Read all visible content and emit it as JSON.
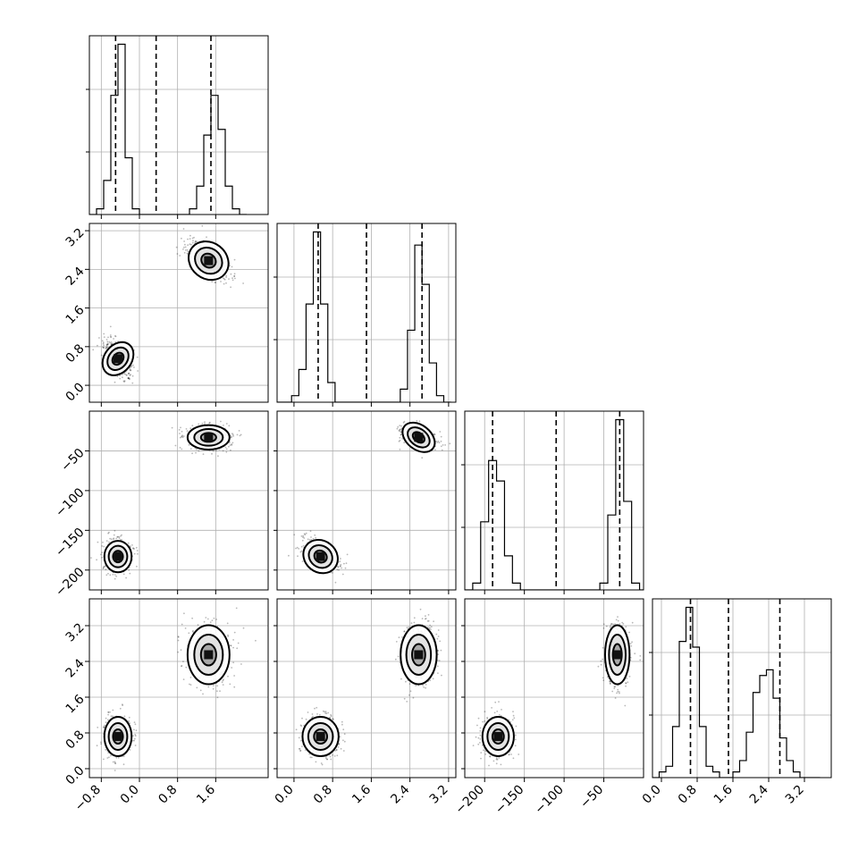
{
  "chart_data": {
    "type": "corner",
    "parameters": 4,
    "grid": true,
    "axis_ranges": [
      [
        -1.05,
        2.7
      ],
      [
        -0.35,
        3.35
      ],
      [
        -225,
        0
      ],
      [
        -0.2,
        3.8
      ]
    ],
    "ticks": [
      [
        -0.8,
        0.0,
        0.8,
        1.6
      ],
      [
        0.0,
        0.8,
        1.6,
        2.4,
        3.2
      ],
      [
        -200,
        -150,
        -100,
        -50
      ],
      [
        0.0,
        0.8,
        1.6,
        2.4,
        3.2
      ]
    ],
    "tick_labels": [
      [
        "−0.8",
        "0.0",
        "0.8",
        "1.6"
      ],
      [
        "0.0",
        "0.8",
        "1.6",
        "2.4",
        "3.2"
      ],
      [
        "−200",
        "−150",
        "−100",
        "−50"
      ],
      [
        "0.0",
        "0.8",
        "1.6",
        "2.4",
        "3.2"
      ]
    ],
    "quantiles": [
      [
        -0.5,
        0.35,
        1.5
      ],
      [
        0.5,
        1.5,
        2.65
      ],
      [
        -190,
        -110,
        -30
      ],
      [
        0.65,
        1.5,
        2.65
      ]
    ],
    "modes": [
      [
        {
          "mean": -0.45,
          "sd": 0.13,
          "weight": 1.0
        },
        {
          "mean": 1.45,
          "sd": 0.2,
          "weight": 0.8
        }
      ],
      [
        {
          "mean": 0.55,
          "sd": 0.17,
          "weight": 1.0
        },
        {
          "mean": 2.58,
          "sd": 0.17,
          "weight": 0.9
        }
      ],
      [
        {
          "mean": -183,
          "sd": 9,
          "weight": 0.85
        },
        {
          "mean": -33,
          "sd": 7,
          "weight": 1.0
        }
      ],
      [
        {
          "mean": 0.72,
          "sd": 0.2,
          "weight": 1.0
        },
        {
          "mean": 2.55,
          "sd": 0.3,
          "weight": 0.6
        }
      ]
    ],
    "histograms": [
      {
        "bins": [
          -1.05,
          -0.9,
          -0.75,
          -0.6,
          -0.45,
          -0.3,
          -0.15,
          0.0,
          0.15,
          0.3,
          0.45,
          0.6,
          0.75,
          0.9,
          1.05,
          1.2,
          1.35,
          1.5,
          1.65,
          1.8,
          1.95,
          2.1,
          2.25
        ],
        "counts": [
          0,
          1,
          6,
          21,
          30,
          10,
          1,
          0,
          0,
          0,
          0,
          0,
          0,
          0,
          1,
          5,
          14,
          21,
          15,
          5,
          1,
          0
        ]
      },
      {
        "bins": [
          -0.35,
          -0.2,
          -0.05,
          0.1,
          0.25,
          0.4,
          0.55,
          0.7,
          0.85,
          1.0,
          1.15,
          1.3,
          1.45,
          1.6,
          1.75,
          1.9,
          2.05,
          2.2,
          2.35,
          2.5,
          2.65,
          2.8,
          2.95,
          3.1,
          3.25
        ],
        "counts": [
          0,
          0,
          1,
          5,
          15,
          26,
          15,
          3,
          0,
          0,
          0,
          0,
          0,
          0,
          0,
          0,
          0,
          2,
          11,
          24,
          18,
          6,
          1,
          0
        ]
      },
      {
        "bins": [
          -225,
          -215,
          -205,
          -195,
          -185,
          -175,
          -165,
          -155,
          -145,
          -135,
          -125,
          -115,
          -105,
          -95,
          -85,
          -75,
          -65,
          -55,
          -45,
          -35,
          -25,
          -15,
          -5,
          5
        ],
        "counts": [
          0,
          1,
          10,
          19,
          16,
          5,
          1,
          0,
          0,
          0,
          0,
          0,
          0,
          0,
          0,
          0,
          0,
          1,
          11,
          25,
          13,
          1,
          0
        ]
      },
      {
        "bins": [
          -0.2,
          -0.05,
          0.1,
          0.25,
          0.4,
          0.55,
          0.7,
          0.85,
          1.0,
          1.15,
          1.3,
          1.45,
          1.6,
          1.75,
          1.9,
          2.05,
          2.2,
          2.35,
          2.5,
          2.65,
          2.8,
          2.95,
          3.1,
          3.25,
          3.4,
          3.55
        ],
        "counts": [
          0,
          1,
          2,
          9,
          24,
          30,
          23,
          9,
          2,
          1,
          0,
          0,
          1,
          3,
          8,
          15,
          18,
          19,
          14,
          7,
          3,
          1,
          0,
          0,
          0
        ]
      }
    ]
  }
}
